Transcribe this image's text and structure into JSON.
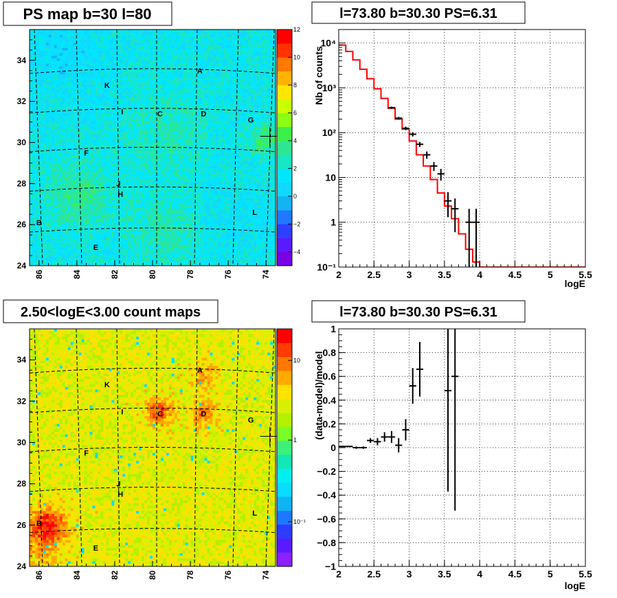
{
  "colors": {
    "model_line": "#ff0000",
    "data_marker": "#000000",
    "frame": "#000000",
    "grid": "#000000"
  },
  "chart_data": [
    {
      "type": "heatmap",
      "title": "PS map b=30 l=80",
      "x_ticks": [
        "86",
        "84",
        "82",
        "80",
        "78",
        "76",
        "74"
      ],
      "y_ticks": [
        "24",
        "26",
        "28",
        "30",
        "32",
        "34"
      ],
      "xlim": [
        86.5,
        73.5
      ],
      "ylim": [
        24,
        35.5
      ],
      "palette_ticks": [
        "12",
        "10",
        "8",
        "6",
        "4",
        "2",
        "0",
        "−2",
        "−4"
      ],
      "palette_range": [
        -5,
        12
      ],
      "sources": [
        {
          "label": "A",
          "l": 77.5,
          "b": 33.5
        },
        {
          "label": "K",
          "l": 82.4,
          "b": 32.8
        },
        {
          "label": "I",
          "l": 81.6,
          "b": 31.5
        },
        {
          "label": "C",
          "l": 79.6,
          "b": 31.4
        },
        {
          "label": "D",
          "l": 77.3,
          "b": 31.4
        },
        {
          "label": "G",
          "l": 74.8,
          "b": 31.1
        },
        {
          "label": "F",
          "l": 83.5,
          "b": 29.5
        },
        {
          "label": "J",
          "l": 81.8,
          "b": 28.0
        },
        {
          "label": "H",
          "l": 81.7,
          "b": 27.5
        },
        {
          "label": "B",
          "l": 86.0,
          "b": 26.1
        },
        {
          "label": "L",
          "l": 74.6,
          "b": 26.6
        },
        {
          "label": "E",
          "l": 83.0,
          "b": 24.9
        }
      ],
      "marker": {
        "l": 73.8,
        "b": 30.3
      }
    },
    {
      "type": "line",
      "title": "l=73.80 b=30.30 PS=6.31",
      "xlabel": "logE",
      "ylabel": "Nb of counts",
      "xlim": [
        2,
        5.5
      ],
      "ylim": [
        0.1,
        20000
      ],
      "y_scale": "log",
      "grid": true,
      "x_ticks": [
        "2",
        "2.5",
        "3",
        "3.5",
        "4",
        "4.5",
        "5",
        "5.5"
      ],
      "y_ticks": [
        "10⁻¹",
        "1",
        "10",
        "10²",
        "10³",
        "10⁴"
      ],
      "series": [
        {
          "kind": "step",
          "x": [
            2.0,
            2.1,
            2.2,
            2.3,
            2.4,
            2.5,
            2.6,
            2.7,
            2.8,
            2.9,
            3.0,
            3.1,
            3.2,
            3.3,
            3.4,
            3.5,
            3.6,
            3.7,
            3.8,
            3.9,
            4.0,
            5.5
          ],
          "y": [
            9000,
            6500,
            4200,
            2600,
            1600,
            950,
            580,
            350,
            200,
            120,
            65,
            32,
            18,
            9,
            4.5,
            2.3,
            1.2,
            0.55,
            0.25,
            0.13,
            0.1,
            0.1
          ]
        },
        {
          "kind": "errorbar",
          "x": [
            2.75,
            2.85,
            2.95,
            3.05,
            3.15,
            3.25,
            3.35,
            3.45,
            3.55,
            3.65,
            3.85,
            3.95
          ],
          "y": [
            360,
            210,
            125,
            92,
            55,
            32,
            18,
            12,
            3,
            2,
            1,
            1
          ],
          "err_low": [
            20,
            15,
            11,
            10,
            7,
            6,
            4,
            3.5,
            1.7,
            1.4,
            0.9,
            0.9
          ],
          "err_high": [
            20,
            15,
            11,
            10,
            7,
            6,
            4,
            3.5,
            1.7,
            1.4,
            1.0,
            1.0
          ],
          "xerr": 0.05
        }
      ]
    },
    {
      "type": "heatmap",
      "title": "2.50<logE<3.00 count maps",
      "x_ticks": [
        "86",
        "84",
        "82",
        "80",
        "78",
        "76",
        "74"
      ],
      "y_ticks": [
        "24",
        "26",
        "28",
        "30",
        "32",
        "34"
      ],
      "xlim": [
        86.5,
        73.5
      ],
      "ylim": [
        24,
        35.5
      ],
      "palette_ticks": [
        "10",
        "1",
        "10⁻¹"
      ],
      "palette_scale": "log",
      "sources": [
        {
          "label": "A",
          "l": 77.5,
          "b": 33.5
        },
        {
          "label": "K",
          "l": 82.4,
          "b": 32.8
        },
        {
          "label": "I",
          "l": 81.6,
          "b": 31.5
        },
        {
          "label": "C",
          "l": 79.6,
          "b": 31.4
        },
        {
          "label": "D",
          "l": 77.3,
          "b": 31.4
        },
        {
          "label": "G",
          "l": 74.8,
          "b": 31.1
        },
        {
          "label": "F",
          "l": 83.5,
          "b": 29.5
        },
        {
          "label": "J",
          "l": 81.8,
          "b": 28.0
        },
        {
          "label": "H",
          "l": 81.7,
          "b": 27.5
        },
        {
          "label": "B",
          "l": 86.0,
          "b": 26.1
        },
        {
          "label": "L",
          "l": 74.6,
          "b": 26.6
        },
        {
          "label": "E",
          "l": 83.0,
          "b": 24.9
        }
      ],
      "marker": {
        "l": 73.8,
        "b": 30.3
      }
    },
    {
      "type": "scatter",
      "title": "l=73.80 b=30.30 PS=6.31",
      "xlabel": "logE",
      "ylabel": "(data-model)/model",
      "xlim": [
        2,
        5.5
      ],
      "ylim": [
        -1,
        1
      ],
      "grid": true,
      "x_ticks": [
        "2",
        "2.5",
        "3",
        "3.5",
        "4",
        "4.5",
        "5",
        "5.5"
      ],
      "y_ticks": [
        "−1",
        "−0.8",
        "−0.6",
        "−0.4",
        "−0.2",
        "0",
        "0.2",
        "0.4",
        "0.6",
        "0.8",
        "1"
      ],
      "series": [
        {
          "kind": "errorbar",
          "x": [
            2.05,
            2.15,
            2.25,
            2.35,
            2.45,
            2.55,
            2.65,
            2.75,
            2.85,
            2.95,
            3.05,
            3.15,
            3.55,
            3.65
          ],
          "y": [
            0.01,
            0.01,
            0.0,
            0.0,
            0.06,
            0.05,
            0.09,
            0.09,
            0.02,
            0.15,
            0.52,
            0.66,
            0.48,
            0.6
          ],
          "err": [
            0.005,
            0.005,
            0.01,
            0.01,
            0.02,
            0.03,
            0.04,
            0.05,
            0.06,
            0.09,
            0.15,
            0.23,
            0.85,
            1.13
          ],
          "xerr": 0.05
        }
      ]
    }
  ]
}
